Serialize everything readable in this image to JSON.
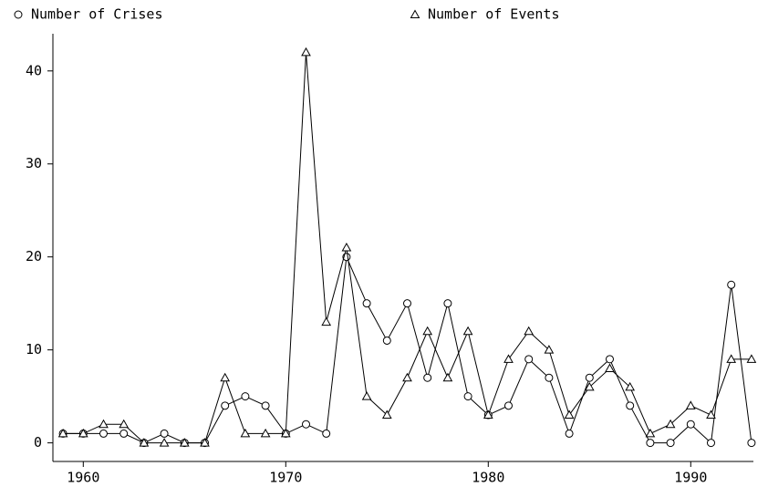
{
  "chart_data": {
    "type": "line",
    "x": [
      1959,
      1960,
      1961,
      1962,
      1963,
      1964,
      1965,
      1966,
      1967,
      1968,
      1969,
      1970,
      1971,
      1972,
      1973,
      1974,
      1975,
      1976,
      1977,
      1978,
      1979,
      1980,
      1981,
      1982,
      1983,
      1984,
      1985,
      1986,
      1987,
      1988,
      1989,
      1990,
      1991,
      1992,
      1993
    ],
    "series": [
      {
        "name": "Number of Crises",
        "color": "#000000",
        "marker": "circle",
        "values": [
          1,
          1,
          1,
          1,
          0,
          1,
          0,
          0,
          4,
          5,
          4,
          1,
          2,
          1,
          20,
          15,
          11,
          15,
          7,
          15,
          5,
          3,
          4,
          9,
          7,
          1,
          7,
          9,
          4,
          0,
          0,
          2,
          0,
          17,
          0
        ]
      },
      {
        "name": "Number of Events",
        "color": "#000000",
        "marker": "triangle",
        "values": [
          1,
          1,
          2,
          2,
          0,
          0,
          0,
          0,
          7,
          1,
          1,
          1,
          42,
          13,
          21,
          5,
          3,
          7,
          12,
          7,
          12,
          3,
          9,
          12,
          10,
          3,
          6,
          8,
          6,
          1,
          2,
          4,
          3,
          9,
          9
        ]
      }
    ],
    "xlim": [
      1958.5,
      1993.5
    ],
    "xticks": [
      1960,
      1970,
      1980,
      1990
    ],
    "ylim": [
      -2,
      44
    ],
    "yticks": [
      0,
      10,
      20,
      30,
      40
    ]
  }
}
